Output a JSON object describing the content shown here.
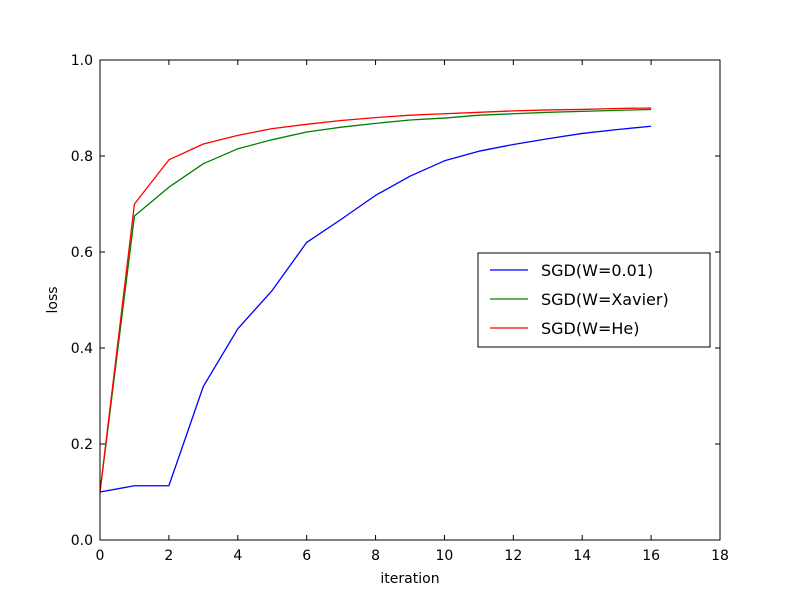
{
  "chart_data": {
    "type": "line",
    "title": "",
    "xlabel": "iteration",
    "ylabel": "loss",
    "xlim": [
      0,
      18
    ],
    "ylim": [
      0.0,
      1.0
    ],
    "xticks": [
      "0",
      "2",
      "4",
      "6",
      "8",
      "10",
      "12",
      "14",
      "16",
      "18"
    ],
    "yticks": [
      "0.0",
      "0.2",
      "0.4",
      "0.6",
      "0.8",
      "1.0"
    ],
    "grid": false,
    "legend_position": "center-right",
    "x": [
      0,
      1,
      2,
      3,
      4,
      5,
      6,
      7,
      8,
      9,
      10,
      11,
      12,
      13,
      14,
      15,
      16
    ],
    "series": [
      {
        "name": "SGD(W=0.01)",
        "color": "#0000ff",
        "values": [
          0.1,
          0.113,
          0.113,
          0.32,
          0.44,
          0.52,
          0.62,
          0.668,
          0.718,
          0.758,
          0.79,
          0.81,
          0.824,
          0.836,
          0.847,
          0.855,
          0.862
        ]
      },
      {
        "name": "SGD(W=Xavier)",
        "color": "#008000",
        "values": [
          0.1,
          0.675,
          0.735,
          0.784,
          0.815,
          0.834,
          0.85,
          0.86,
          0.868,
          0.875,
          0.879,
          0.885,
          0.888,
          0.891,
          0.893,
          0.895,
          0.897
        ]
      },
      {
        "name": "SGD(W=He)",
        "color": "#ff0000",
        "values": [
          0.1,
          0.7,
          0.792,
          0.825,
          0.843,
          0.857,
          0.866,
          0.874,
          0.88,
          0.885,
          0.888,
          0.891,
          0.894,
          0.896,
          0.897,
          0.899,
          0.9
        ]
      }
    ]
  }
}
